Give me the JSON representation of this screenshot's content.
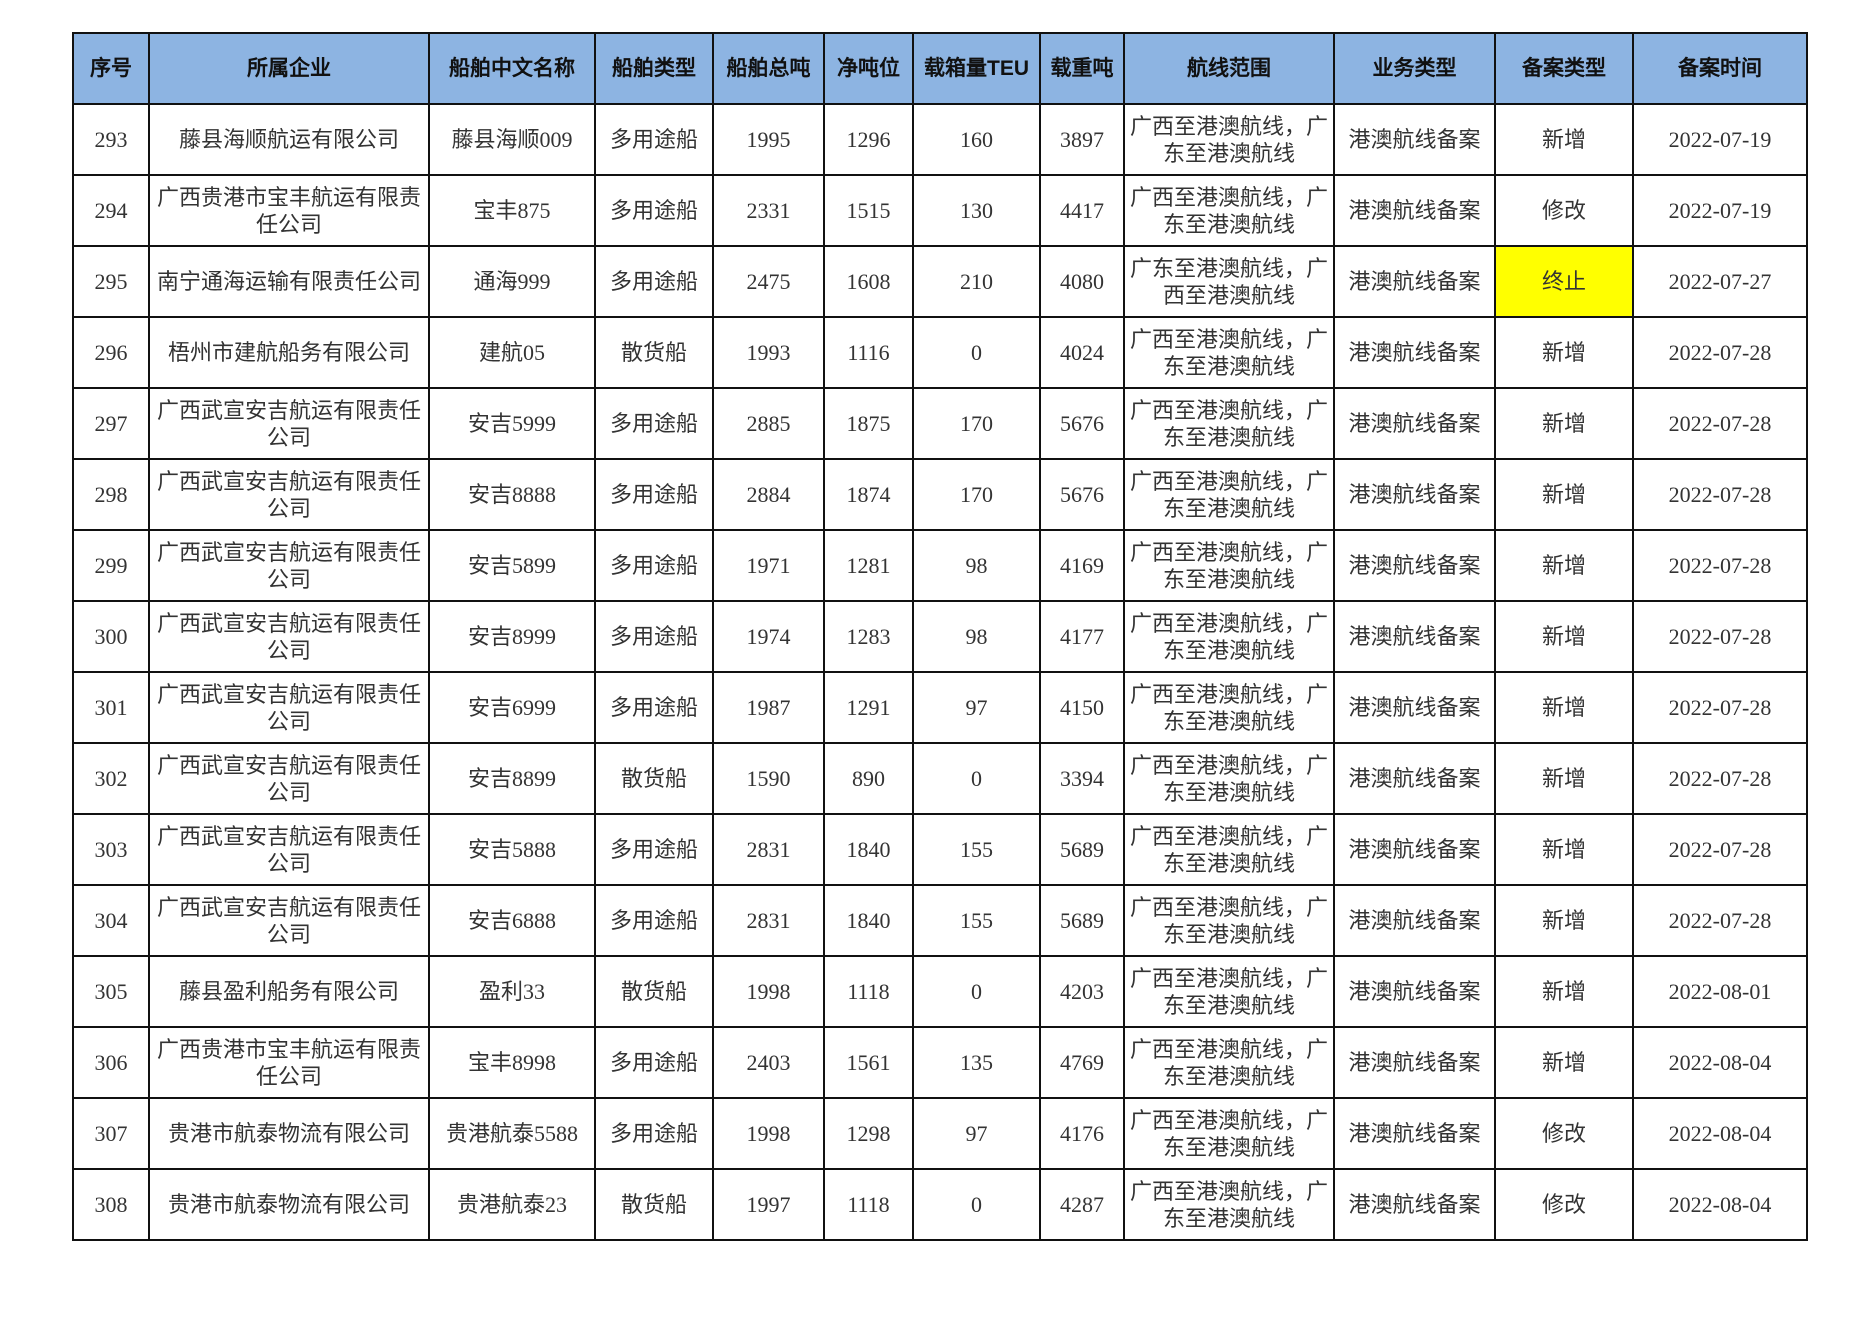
{
  "table": {
    "headers": [
      "序号",
      "所属企业",
      "船舶中文名称",
      "船舶类型",
      "船舶总吨",
      "净吨位",
      "载箱量TEU",
      "载重吨",
      "航线范围",
      "业务类型",
      "备案类型",
      "备案时间"
    ],
    "highlight_color": "#ffff00",
    "header_color": "#8db4e2",
    "rows": [
      {
        "cells": [
          "293",
          "藤县海顺航运有限公司",
          "藤县海顺009",
          "多用途船",
          "1995",
          "1296",
          "160",
          "3897",
          "广西至港澳航线，广东至港澳航线",
          "港澳航线备案",
          "新增",
          "2022-07-19"
        ]
      },
      {
        "cells": [
          "294",
          "广西贵港市宝丰航运有限责任公司",
          "宝丰875",
          "多用途船",
          "2331",
          "1515",
          "130",
          "4417",
          "广西至港澳航线，广东至港澳航线",
          "港澳航线备案",
          "修改",
          "2022-07-19"
        ]
      },
      {
        "cells": [
          "295",
          "南宁通海运输有限责任公司",
          "通海999",
          "多用途船",
          "2475",
          "1608",
          "210",
          "4080",
          "广东至港澳航线，广西至港澳航线",
          "港澳航线备案",
          "终止",
          "2022-07-27"
        ],
        "highlight": true
      },
      {
        "cells": [
          "296",
          "梧州市建航船务有限公司",
          "建航05",
          "散货船",
          "1993",
          "1116",
          "0",
          "4024",
          "广西至港澳航线，广东至港澳航线",
          "港澳航线备案",
          "新增",
          "2022-07-28"
        ]
      },
      {
        "cells": [
          "297",
          "广西武宣安吉航运有限责任公司",
          "安吉5999",
          "多用途船",
          "2885",
          "1875",
          "170",
          "5676",
          "广西至港澳航线，广东至港澳航线",
          "港澳航线备案",
          "新增",
          "2022-07-28"
        ]
      },
      {
        "cells": [
          "298",
          "广西武宣安吉航运有限责任公司",
          "安吉8888",
          "多用途船",
          "2884",
          "1874",
          "170",
          "5676",
          "广西至港澳航线，广东至港澳航线",
          "港澳航线备案",
          "新增",
          "2022-07-28"
        ]
      },
      {
        "cells": [
          "299",
          "广西武宣安吉航运有限责任公司",
          "安吉5899",
          "多用途船",
          "1971",
          "1281",
          "98",
          "4169",
          "广西至港澳航线，广东至港澳航线",
          "港澳航线备案",
          "新增",
          "2022-07-28"
        ]
      },
      {
        "cells": [
          "300",
          "广西武宣安吉航运有限责任公司",
          "安吉8999",
          "多用途船",
          "1974",
          "1283",
          "98",
          "4177",
          "广西至港澳航线，广东至港澳航线",
          "港澳航线备案",
          "新增",
          "2022-07-28"
        ]
      },
      {
        "cells": [
          "301",
          "广西武宣安吉航运有限责任公司",
          "安吉6999",
          "多用途船",
          "1987",
          "1291",
          "97",
          "4150",
          "广西至港澳航线，广东至港澳航线",
          "港澳航线备案",
          "新增",
          "2022-07-28"
        ]
      },
      {
        "cells": [
          "302",
          "广西武宣安吉航运有限责任公司",
          "安吉8899",
          "散货船",
          "1590",
          "890",
          "0",
          "3394",
          "广西至港澳航线，广东至港澳航线",
          "港澳航线备案",
          "新增",
          "2022-07-28"
        ]
      },
      {
        "cells": [
          "303",
          "广西武宣安吉航运有限责任公司",
          "安吉5888",
          "多用途船",
          "2831",
          "1840",
          "155",
          "5689",
          "广西至港澳航线，广东至港澳航线",
          "港澳航线备案",
          "新增",
          "2022-07-28"
        ]
      },
      {
        "cells": [
          "304",
          "广西武宣安吉航运有限责任公司",
          "安吉6888",
          "多用途船",
          "2831",
          "1840",
          "155",
          "5689",
          "广西至港澳航线，广东至港澳航线",
          "港澳航线备案",
          "新增",
          "2022-07-28"
        ]
      },
      {
        "cells": [
          "305",
          "藤县盈利船务有限公司",
          "盈利33",
          "散货船",
          "1998",
          "1118",
          "0",
          "4203",
          "广西至港澳航线，广东至港澳航线",
          "港澳航线备案",
          "新增",
          "2022-08-01"
        ]
      },
      {
        "cells": [
          "306",
          "广西贵港市宝丰航运有限责任公司",
          "宝丰8998",
          "多用途船",
          "2403",
          "1561",
          "135",
          "4769",
          "广西至港澳航线，广东至港澳航线",
          "港澳航线备案",
          "新增",
          "2022-08-04"
        ]
      },
      {
        "cells": [
          "307",
          "贵港市航泰物流有限公司",
          "贵港航泰5588",
          "多用途船",
          "1998",
          "1298",
          "97",
          "4176",
          "广西至港澳航线，广东至港澳航线",
          "港澳航线备案",
          "修改",
          "2022-08-04"
        ]
      },
      {
        "cells": [
          "308",
          "贵港市航泰物流有限公司",
          "贵港航泰23",
          "散货船",
          "1997",
          "1118",
          "0",
          "4287",
          "广西至港澳航线，广东至港澳航线",
          "港澳航线备案",
          "修改",
          "2022-08-04"
        ]
      }
    ]
  }
}
